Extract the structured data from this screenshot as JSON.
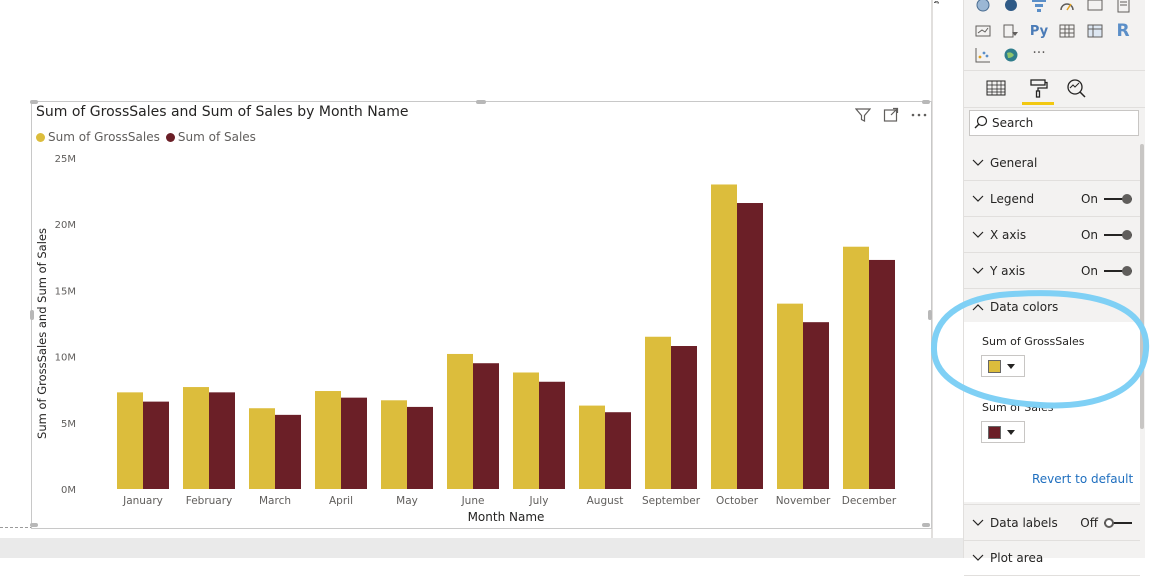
{
  "visual": {
    "title": "Sum of GrossSales and Sum of Sales by Month Name",
    "icons": [
      "filter-icon",
      "focus-mode-icon",
      "more-options-icon"
    ]
  },
  "colors": {
    "gross_sales": "#dcbd3c",
    "sales": "#6b1f27",
    "annotation": "#7fd0f5",
    "link": "#1f6fbf",
    "tab_underline": "#f2c811"
  },
  "chart_data": {
    "type": "bar",
    "title": "Sum of GrossSales and Sum of Sales by Month Name",
    "xlabel": "Month Name",
    "ylabel": "Sum of GrossSales and Sum of Sales",
    "categories": [
      "January",
      "February",
      "March",
      "April",
      "May",
      "June",
      "July",
      "August",
      "September",
      "October",
      "November",
      "December"
    ],
    "series": [
      {
        "name": "Sum of GrossSales",
        "values": [
          7.3,
          7.7,
          6.1,
          7.4,
          6.7,
          10.2,
          8.8,
          6.3,
          11.5,
          23.0,
          14.0,
          18.3
        ]
      },
      {
        "name": "Sum of Sales",
        "values": [
          6.6,
          7.3,
          5.6,
          6.9,
          6.2,
          9.5,
          8.1,
          5.8,
          10.8,
          21.6,
          12.6,
          17.3
        ]
      }
    ],
    "ylim": [
      0,
      25
    ],
    "yticks": [
      "0M",
      "5M",
      "10M",
      "15M",
      "20M",
      "25M"
    ],
    "legend": "top-left",
    "grid": false
  },
  "pane": {
    "viz_icons": [
      "map-icon",
      "filled-map-icon",
      "funnel-icon",
      "gauge-icon",
      "card-icon",
      "multi-row-card-icon",
      "kpi-icon",
      "slicer-icon",
      "python-visual-icon",
      "table-icon",
      "matrix-icon",
      "r-visual-icon",
      "scatter-icon",
      "globe-icon",
      "more-visuals-icon"
    ],
    "python_label": "Py",
    "r_label": "R",
    "more_label": "···",
    "search_placeholder": "Search",
    "sections": [
      {
        "label": "General"
      },
      {
        "label": "Legend",
        "state": "On"
      },
      {
        "label": "X axis",
        "state": "On"
      },
      {
        "label": "Y axis",
        "state": "On"
      },
      {
        "label": "Data colors"
      }
    ],
    "data_colors": {
      "field1_label": "Sum of GrossSales",
      "field2_label": "Sum of Sales",
      "revert_label": "Revert to default"
    },
    "data_labels": {
      "label": "Data labels",
      "state": "Off"
    },
    "plot_area_label": "Plot area"
  }
}
